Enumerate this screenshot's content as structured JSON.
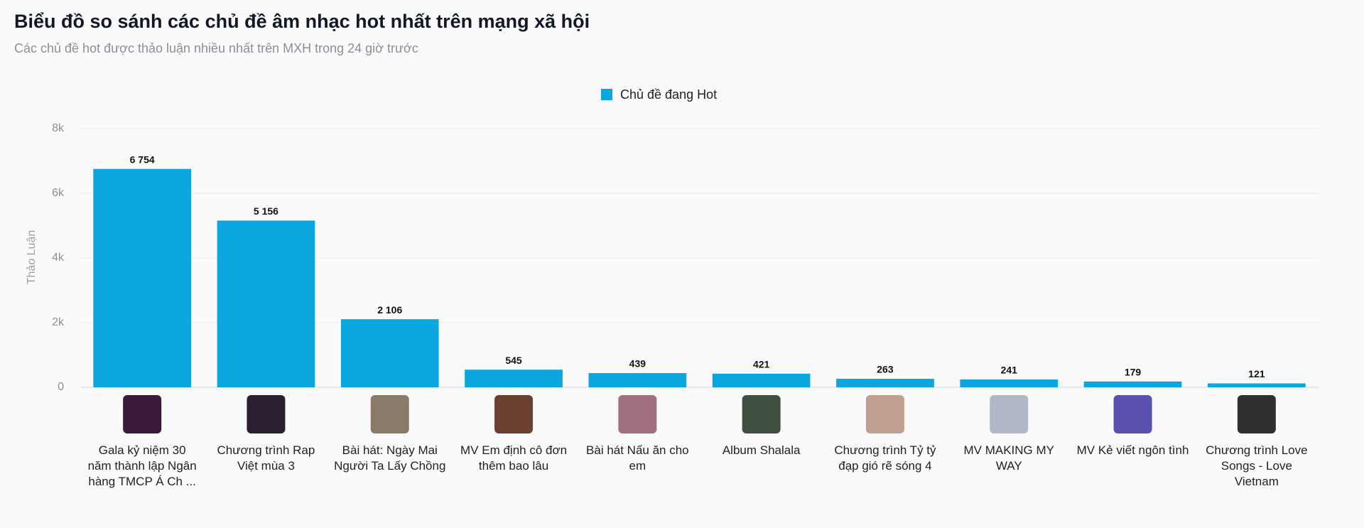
{
  "chart_data": {
    "type": "bar",
    "title": "Biểu đồ so sánh các chủ đề âm nhạc hot nhất trên mạng xã hội",
    "subtitle": "Các chủ đề hot được thảo luận nhiều nhất trên MXH trong 24 giờ trước",
    "y_label": "Thảo Luận",
    "categories": [
      "Gala kỷ niệm 30 năm thành lập Ngân hàng TMCP Á Ch ...",
      "Chương trình Rap Việt mùa 3",
      "Bài hát: Ngày Mai Người Ta Lấy Chồng",
      "MV Em định cô đơn thêm bao lâu",
      "Bài hát Nấu ăn cho em",
      "Album Shalala",
      "Chương trình Tỷ tỷ đạp gió rẽ sóng 4",
      "MV MAKING MY WAY",
      "MV Kẻ viết ngôn tình",
      "Chương trình Love Songs - Love Vietnam"
    ],
    "series": [
      {
        "name": "Chủ đề đang Hot",
        "color": "#0ba5df",
        "values": [
          6754,
          5156,
          2106,
          545,
          439,
          421,
          263,
          241,
          179,
          121
        ],
        "value_labels": [
          "6 754",
          "5 156",
          "2 106",
          "545",
          "439",
          "421",
          "263",
          "241",
          "179",
          "121"
        ]
      }
    ],
    "ylim": [
      0,
      8000
    ],
    "yticks": [
      0,
      {
        "value": 2000,
        "label": "2k"
      },
      {
        "value": 4000,
        "label": "4k"
      },
      {
        "value": 6000,
        "label": "6k"
      },
      {
        "value": 8000,
        "label": "8k"
      }
    ],
    "grid": true,
    "legend": "top"
  }
}
